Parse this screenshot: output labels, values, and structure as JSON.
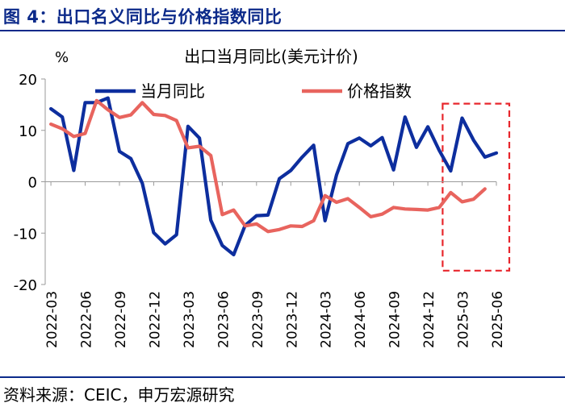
{
  "figure_title": "图 4：出口名义同比与价格指数同比",
  "source": "资料来源：CEIC，申万宏源研究",
  "chart_data": {
    "type": "line",
    "title": "出口当月同比(美元计价)",
    "ylabel": "%",
    "ylim": [
      -20,
      20
    ],
    "y_ticks": [
      20,
      10,
      0,
      -10,
      -20
    ],
    "x_start": "2022-03",
    "x_ticks": [
      "2022-03",
      "2022-06",
      "2022-09",
      "2022-12",
      "2023-03",
      "2023-06",
      "2023-09",
      "2023-12",
      "2024-03",
      "2024-06",
      "2024-09",
      "2024-12",
      "2025-03",
      "2025-06"
    ],
    "legend_position": "top",
    "highlight": {
      "from": "2025-02",
      "to": "2025-06",
      "color": "#e8262c",
      "style": "dashed"
    },
    "series": [
      {
        "name": "当月同比",
        "color": "#0d2e9e",
        "x": [
          "2022-03",
          "2022-04",
          "2022-05",
          "2022-06",
          "2022-07",
          "2022-08",
          "2022-09",
          "2022-10",
          "2022-11",
          "2022-12",
          "2023-01",
          "2023-02",
          "2023-03",
          "2023-04",
          "2023-05",
          "2023-06",
          "2023-07",
          "2023-08",
          "2023-09",
          "2023-10",
          "2023-11",
          "2023-12",
          "2024-01",
          "2024-02",
          "2024-03",
          "2024-04",
          "2024-05",
          "2024-06",
          "2024-07",
          "2024-08",
          "2024-09",
          "2024-10",
          "2024-11",
          "2024-12",
          "2025-01",
          "2025-02",
          "2025-03",
          "2025-04",
          "2025-05",
          "2025-06"
        ],
        "values": [
          14.2,
          12.6,
          2.2,
          15.4,
          15.4,
          16.3,
          5.9,
          4.5,
          -0.3,
          -9.9,
          -12.1,
          -10.3,
          10.8,
          8.5,
          -7.5,
          -12.4,
          -14.2,
          -8.5,
          -6.6,
          -6.5,
          0.6,
          2.2,
          4.8,
          7.1,
          -7.6,
          1.3,
          7.4,
          8.5,
          7.0,
          8.6,
          2.3,
          12.6,
          6.7,
          10.7,
          6.1,
          2.1,
          12.4,
          8.1,
          4.8,
          5.6
        ]
      },
      {
        "name": "价格指数",
        "color": "#e8645e",
        "x": [
          "2022-03",
          "2022-04",
          "2022-05",
          "2022-06",
          "2022-07",
          "2022-08",
          "2022-09",
          "2022-10",
          "2022-11",
          "2022-12",
          "2023-01",
          "2023-02",
          "2023-03",
          "2023-04",
          "2023-05",
          "2023-06",
          "2023-07",
          "2023-08",
          "2023-09",
          "2023-10",
          "2023-11",
          "2023-12",
          "2024-01",
          "2024-02",
          "2024-03",
          "2024-04",
          "2024-05",
          "2024-06",
          "2024-07",
          "2024-08",
          "2024-09",
          "2024-10",
          "2024-11",
          "2024-12",
          "2025-01",
          "2025-02",
          "2025-03",
          "2025-04",
          "2025-05",
          "2025-06"
        ],
        "values": [
          11.2,
          10.3,
          8.8,
          9.4,
          15.8,
          14.0,
          12.5,
          13.0,
          15.4,
          13.1,
          12.9,
          11.9,
          6.6,
          6.9,
          5.1,
          -6.4,
          -5.5,
          -8.6,
          -8.2,
          -9.7,
          -9.3,
          -8.6,
          -8.7,
          -7.6,
          -2.7,
          -4.0,
          -3.3,
          -5.0,
          -6.8,
          -6.3,
          -5.0,
          -5.3,
          -5.4,
          -5.5,
          -5.0,
          -2.1,
          -3.9,
          -3.4,
          -1.4,
          null
        ]
      }
    ]
  }
}
